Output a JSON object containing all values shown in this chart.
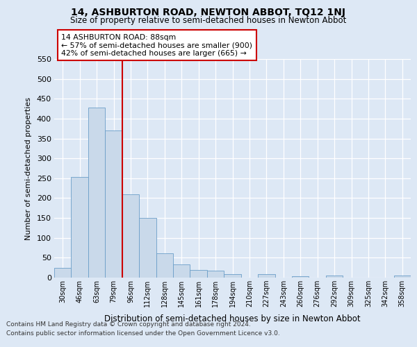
{
  "title": "14, ASHBURTON ROAD, NEWTON ABBOT, TQ12 1NJ",
  "subtitle": "Size of property relative to semi-detached houses in Newton Abbot",
  "xlabel": "Distribution of semi-detached houses by size in Newton Abbot",
  "ylabel": "Number of semi-detached properties",
  "bar_values": [
    25,
    253,
    428,
    370,
    209,
    151,
    61,
    34,
    20,
    17,
    8,
    0,
    8,
    0,
    4,
    0,
    5,
    0,
    0,
    0,
    6
  ],
  "bar_labels": [
    "30sqm",
    "46sqm",
    "63sqm",
    "79sqm",
    "96sqm",
    "112sqm",
    "128sqm",
    "145sqm",
    "161sqm",
    "178sqm",
    "194sqm",
    "210sqm",
    "227sqm",
    "243sqm",
    "260sqm",
    "276sqm",
    "292sqm",
    "309sqm",
    "325sqm",
    "342sqm",
    "358sqm"
  ],
  "bar_color": "#c9d9ea",
  "bar_edge_color": "#6b9ec8",
  "vline_x": 3.5,
  "vline_color": "#cc0000",
  "annotation_text": "14 ASHBURTON ROAD: 88sqm\n← 57% of semi-detached houses are smaller (900)\n42% of semi-detached houses are larger (665) →",
  "ylim": [
    0,
    550
  ],
  "yticks": [
    0,
    50,
    100,
    150,
    200,
    250,
    300,
    350,
    400,
    450,
    500,
    550
  ],
  "footer_line1": "Contains HM Land Registry data © Crown copyright and database right 2024.",
  "footer_line2": "Contains public sector information licensed under the Open Government Licence v3.0.",
  "fig_bg_color": "#dde8f5",
  "plot_bg_color": "#dde8f5"
}
